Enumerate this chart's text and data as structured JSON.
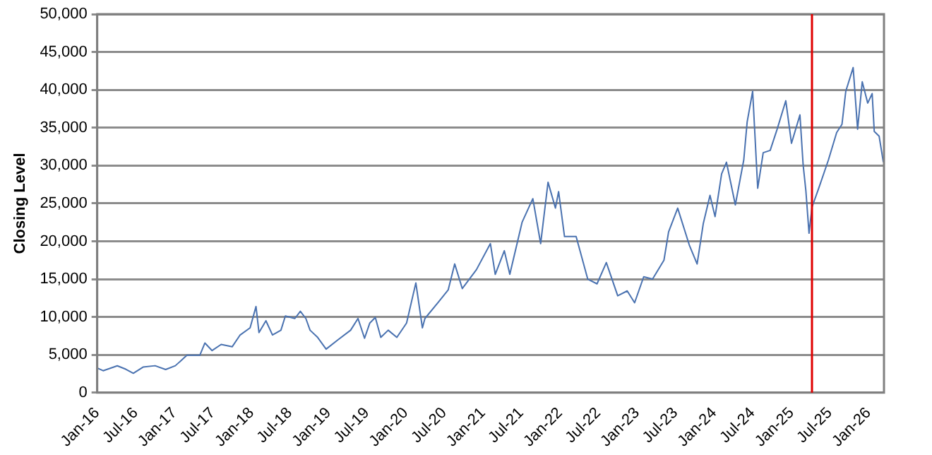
{
  "chart_data": {
    "type": "line",
    "ylabel": "Closing Level",
    "color": "#4a72b0",
    "grid": "y",
    "legend": false,
    "marker": "none",
    "line_style": "solid",
    "xlim": [
      "2016-01-01",
      "2026-03-15"
    ],
    "xticks": [
      {
        "value": "2016-01",
        "label": "Jan-16"
      },
      {
        "value": "2016-07",
        "label": "Jul-16"
      },
      {
        "value": "2017-01",
        "label": "Jan-17"
      },
      {
        "value": "2017-07",
        "label": "Jul-17"
      },
      {
        "value": "2018-01",
        "label": "Jan-18"
      },
      {
        "value": "2018-07",
        "label": "Jul-18"
      },
      {
        "value": "2019-01",
        "label": "Jan-19"
      },
      {
        "value": "2019-07",
        "label": "Jul-19"
      },
      {
        "value": "2020-01",
        "label": "Jan-20"
      },
      {
        "value": "2020-07",
        "label": "Jul-20"
      },
      {
        "value": "2021-01",
        "label": "Jan-21"
      },
      {
        "value": "2021-07",
        "label": "Jul-21"
      },
      {
        "value": "2022-01",
        "label": "Jan-22"
      },
      {
        "value": "2022-07",
        "label": "Jul-22"
      },
      {
        "value": "2023-01",
        "label": "Jan-23"
      },
      {
        "value": "2023-07",
        "label": "Jul-23"
      },
      {
        "value": "2024-01",
        "label": "Jan-24"
      },
      {
        "value": "2024-07",
        "label": "Jul-24"
      },
      {
        "value": "2025-01",
        "label": "Jan-25"
      },
      {
        "value": "2025-07",
        "label": "Jul-25"
      },
      {
        "value": "2026-01",
        "label": "Jan-26"
      }
    ],
    "ylim": [
      0,
      50000
    ],
    "yticks": [
      {
        "value": 0,
        "label": "0"
      },
      {
        "value": 5000,
        "label": "5,000"
      },
      {
        "value": 10000,
        "label": "10,000"
      },
      {
        "value": 15000,
        "label": "15,000"
      },
      {
        "value": 20000,
        "label": "20,000"
      },
      {
        "value": 25000,
        "label": "25,000"
      },
      {
        "value": 30000,
        "label": "30,000"
      },
      {
        "value": 35000,
        "label": "35,000"
      },
      {
        "value": 40000,
        "label": "40,000"
      },
      {
        "value": 45000,
        "label": "45,000"
      },
      {
        "value": 50000,
        "label": "50,000"
      }
    ],
    "ref_lines": [
      {
        "axis": "x",
        "value": "2025-04-08",
        "color": "#e00000"
      }
    ],
    "x": [
      "2016-01-01",
      "2016-01-29",
      "2016-04-05",
      "2016-05-15",
      "2016-06-20",
      "2016-08-05",
      "2016-10-01",
      "2016-11-20",
      "2017-01-05",
      "2017-03-01",
      "2017-05-01",
      "2017-05-25",
      "2017-06-28",
      "2017-08-10",
      "2017-10-01",
      "2017-11-08",
      "2017-12-25",
      "2018-01-22",
      "2018-02-05",
      "2018-03-10",
      "2018-04-10",
      "2018-05-20",
      "2018-06-10",
      "2018-07-25",
      "2018-08-20",
      "2018-09-15",
      "2018-10-05",
      "2018-11-10",
      "2018-12-20",
      "2019-02-15",
      "2019-04-15",
      "2019-05-20",
      "2019-06-20",
      "2019-07-15",
      "2019-08-10",
      "2019-09-05",
      "2019-10-10",
      "2019-11-20",
      "2020-01-05",
      "2020-02-18",
      "2020-03-20",
      "2020-04-01",
      "2020-06-05",
      "2020-07-20",
      "2020-08-20",
      "2020-09-25",
      "2020-12-01",
      "2021-02-05",
      "2021-02-28",
      "2021-04-12",
      "2021-05-08",
      "2021-07-05",
      "2021-08-25",
      "2021-10-01",
      "2021-11-05",
      "2021-12-10",
      "2021-12-25",
      "2022-01-22",
      "2022-03-18",
      "2022-05-12",
      "2022-06-25",
      "2022-08-08",
      "2022-10-01",
      "2022-11-15",
      "2022-12-20",
      "2023-02-01",
      "2023-03-15",
      "2023-05-08",
      "2023-05-30",
      "2023-07-12",
      "2023-09-05",
      "2023-10-12",
      "2023-11-10",
      "2023-12-12",
      "2024-01-05",
      "2024-02-05",
      "2024-02-28",
      "2024-04-10",
      "2024-05-20",
      "2024-06-05",
      "2024-07-01",
      "2024-07-25",
      "2024-08-20",
      "2024-09-22",
      "2024-10-25",
      "2024-12-05",
      "2025-01-01",
      "2025-02-10",
      "2025-02-25",
      "2025-03-10",
      "2025-03-25",
      "2025-04-08",
      "2025-05-10",
      "2025-06-25",
      "2025-08-03",
      "2025-08-28",
      "2025-09-15",
      "2025-10-20",
      "2025-11-10",
      "2025-12-02",
      "2025-12-28",
      "2026-01-18",
      "2026-01-28",
      "2026-02-20",
      "2026-03-12"
    ],
    "values": [
      3250,
      2900,
      3550,
      3100,
      2560,
      3375,
      3560,
      3060,
      3560,
      4940,
      4940,
      6560,
      5560,
      6375,
      6060,
      7625,
      8560,
      11375,
      7940,
      9500,
      7625,
      8250,
      10125,
      9800,
      10750,
      9800,
      8250,
      7300,
      5750,
      7000,
      8250,
      9800,
      7190,
      9200,
      9940,
      7300,
      8250,
      7300,
      9200,
      14500,
      8560,
      9800,
      12000,
      13560,
      17000,
      13750,
      16250,
      19690,
      15625,
      18750,
      15625,
      22500,
      25625,
      19690,
      27800,
      24375,
      26560,
      20625,
      20625,
      15000,
      14375,
      17190,
      12800,
      13440,
      11875,
      15310,
      15000,
      17500,
      21250,
      24375,
      19500,
      17000,
      22300,
      26060,
      23250,
      28900,
      30440,
      24800,
      30750,
      35750,
      39800,
      27000,
      31700,
      32000,
      34800,
      38560,
      32940,
      36690,
      30125,
      26690,
      21060,
      24500,
      27000,
      30750,
      34375,
      35440,
      39800,
      42940,
      34800,
      41060,
      38250,
      39500,
      34500,
      33875,
      30440
    ]
  }
}
